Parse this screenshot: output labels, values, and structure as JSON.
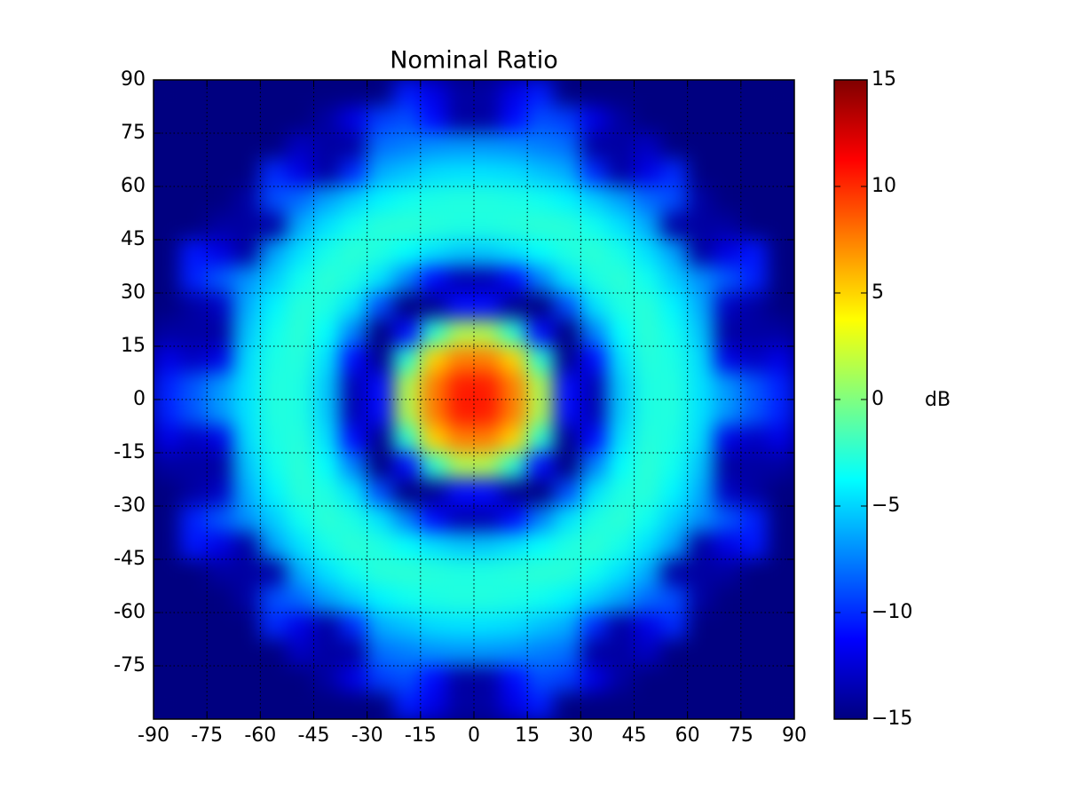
{
  "chart_data": {
    "type": "heatmap",
    "title": "Nominal Ratio",
    "colormap": "jet",
    "clim": [
      -15,
      15
    ],
    "colorbar_label": "dB",
    "colorbar_ticks": [
      {
        "value": 15,
        "label": "15"
      },
      {
        "value": 10,
        "label": "10"
      },
      {
        "value": 5,
        "label": "5"
      },
      {
        "value": 0,
        "label": "0"
      },
      {
        "value": -5,
        "label": "−5"
      },
      {
        "value": -10,
        "label": "−10"
      },
      {
        "value": -15,
        "label": "−15"
      }
    ],
    "xlim": [
      -90,
      90
    ],
    "ylim": [
      -90,
      90
    ],
    "xticks": [
      -90,
      -75,
      -60,
      -45,
      -30,
      -15,
      0,
      15,
      30,
      45,
      60,
      75,
      90
    ],
    "yticks": [
      90,
      75,
      60,
      45,
      30,
      15,
      0,
      -15,
      -30,
      -45,
      -60,
      -75
    ],
    "grid": true,
    "x": [
      -86.25,
      -78.75,
      -71.25,
      -63.75,
      -56.25,
      -48.75,
      -41.25,
      -33.75,
      -26.25,
      -18.75,
      -11.25,
      -3.75,
      3.75,
      11.25,
      18.75,
      26.25,
      33.75,
      41.25,
      48.75,
      56.25,
      63.75,
      71.25,
      78.75,
      86.25
    ],
    "y": [
      86.25,
      78.75,
      71.25,
      63.75,
      56.25,
      48.75,
      41.25,
      33.75,
      26.25,
      18.75,
      11.25,
      3.75,
      -3.75,
      -11.25,
      -18.75,
      -26.25,
      -33.75,
      -41.25,
      -48.75,
      -56.25,
      -63.75,
      -71.25,
      -78.75,
      -86.25
    ],
    "values": [
      [
        -15,
        -15,
        -15,
        -15,
        -15,
        -15,
        -15,
        -15,
        -15,
        -10.5,
        -12,
        -14,
        -14,
        -12,
        -10.5,
        -15,
        -15,
        -15,
        -15,
        -15,
        -15,
        -15,
        -15,
        -15
      ],
      [
        -15,
        -15,
        -15,
        -15,
        -15,
        -15,
        -14,
        -12,
        -9.5,
        -9,
        -11,
        -14,
        -14,
        -11,
        -9,
        -9.5,
        -12,
        -14,
        -15,
        -15,
        -15,
        -15,
        -15,
        -15
      ],
      [
        -15,
        -15,
        -15,
        -15,
        -15,
        -13,
        -14,
        -14,
        -8,
        -7.5,
        -7,
        -6.8,
        -6.8,
        -7,
        -7.5,
        -8,
        -14,
        -14,
        -13,
        -15,
        -15,
        -15,
        -15,
        -15
      ],
      [
        -15,
        -15,
        -15,
        -15,
        -10,
        -12,
        -14,
        -10,
        -6.2,
        -5.5,
        -4.8,
        -4.6,
        -4.6,
        -4.8,
        -5.5,
        -6.2,
        -10,
        -14,
        -12,
        -10,
        -15,
        -15,
        -15,
        -15
      ],
      [
        -15,
        -15,
        -15,
        -14,
        -9,
        -8.1,
        -6.5,
        -5.2,
        -4,
        -3.3,
        -3,
        -2.8,
        -2.8,
        -3,
        -3.3,
        -4,
        -5.2,
        -6.5,
        -8.1,
        -9,
        -14,
        -15,
        -15,
        -15
      ],
      [
        -15,
        -15,
        -14,
        -14,
        -14,
        -6.2,
        -4.6,
        -3.3,
        -2.6,
        -2.5,
        -2.7,
        -2.9,
        -2.9,
        -2.7,
        -2.5,
        -2.6,
        -3.3,
        -4.6,
        -6.2,
        -14,
        -14,
        -14,
        -15,
        -15
      ],
      [
        -15,
        -10.6,
        -12,
        -14,
        -6.5,
        -4.6,
        -3.1,
        -2.5,
        -2.9,
        -3.7,
        -4.6,
        -5.3,
        -5.3,
        -4.6,
        -3.7,
        -2.9,
        -2.5,
        -3.1,
        -4.6,
        -6.5,
        -14,
        -12,
        -10.6,
        -15
      ],
      [
        -15,
        -10.3,
        -8.7,
        -7,
        -5.2,
        -3.3,
        -2.5,
        -3,
        -4.6,
        -7.5,
        -11,
        -13.5,
        -13.5,
        -11,
        -7.5,
        -4.6,
        -3,
        -2.5,
        -3.3,
        -5.2,
        -7,
        -8.7,
        -10.3,
        -15
      ],
      [
        -15,
        -14,
        -13,
        -6.2,
        -4,
        -2.6,
        -2.9,
        -4.6,
        -9,
        -15,
        -14.5,
        -11,
        -11,
        -14.5,
        -15,
        -9,
        -4.6,
        -2.9,
        -2.6,
        -4,
        -6.2,
        -13,
        -14,
        -15
      ],
      [
        -14,
        -14,
        -14,
        -5.5,
        -3.3,
        -2.5,
        -3.7,
        -7.5,
        -15,
        -11,
        -2.5,
        1.4,
        1.4,
        -2.5,
        -11,
        -15,
        -7.5,
        -3.7,
        -2.5,
        -3.3,
        -5.5,
        -14,
        -14,
        -14
      ],
      [
        -12,
        -13,
        -12,
        -4.8,
        -3,
        -2.7,
        -4.6,
        -11,
        -14.5,
        -2.5,
        5,
        7.5,
        7.5,
        5,
        -2.5,
        -14.5,
        -11,
        -4.6,
        -2.7,
        -3,
        -4.8,
        -12,
        -13,
        -12
      ],
      [
        -10.3,
        -8.7,
        -6.8,
        -4.6,
        -2.8,
        -2.9,
        -5.3,
        -13.5,
        -11,
        1.4,
        7.5,
        10.5,
        10.5,
        7.5,
        1.4,
        -11,
        -13.5,
        -5.3,
        -2.9,
        -2.8,
        -4.6,
        -6.8,
        -8.7,
        -10.3
      ],
      [
        -10.3,
        -8.7,
        -6.8,
        -4.6,
        -2.8,
        -2.9,
        -5.3,
        -13.5,
        -11,
        1.4,
        7.5,
        10.5,
        10.5,
        7.5,
        1.4,
        -11,
        -13.5,
        -5.3,
        -2.9,
        -2.8,
        -4.6,
        -6.8,
        -8.7,
        -10.3
      ],
      [
        -12,
        -13,
        -12,
        -4.8,
        -3,
        -2.7,
        -4.6,
        -11,
        -14.5,
        -2.5,
        5,
        7.5,
        7.5,
        5,
        -2.5,
        -14.5,
        -11,
        -4.6,
        -2.7,
        -3,
        -4.8,
        -12,
        -13,
        -12
      ],
      [
        -14,
        -14,
        -14,
        -5.5,
        -3.3,
        -2.5,
        -3.7,
        -7.5,
        -15,
        -11,
        -2.5,
        1.4,
        1.4,
        -2.5,
        -11,
        -15,
        -7.5,
        -3.7,
        -2.5,
        -3.3,
        -5.5,
        -14,
        -14,
        -14
      ],
      [
        -15,
        -14,
        -13,
        -6.2,
        -4,
        -2.6,
        -2.9,
        -4.6,
        -9,
        -15,
        -14.5,
        -11,
        -11,
        -14.5,
        -15,
        -9,
        -4.6,
        -2.9,
        -2.6,
        -4,
        -6.2,
        -13,
        -14,
        -15
      ],
      [
        -15,
        -10.3,
        -8.7,
        -7,
        -5.2,
        -3.3,
        -2.5,
        -3,
        -4.6,
        -7.5,
        -11,
        -13.5,
        -13.5,
        -11,
        -7.5,
        -4.6,
        -3,
        -2.5,
        -3.3,
        -5.2,
        -7,
        -8.7,
        -10.3,
        -15
      ],
      [
        -15,
        -10.6,
        -12,
        -14,
        -6.5,
        -4.6,
        -3.1,
        -2.5,
        -2.9,
        -3.7,
        -4.6,
        -5.3,
        -5.3,
        -4.6,
        -3.7,
        -2.9,
        -2.5,
        -3.1,
        -4.6,
        -6.5,
        -14,
        -12,
        -10.6,
        -15
      ],
      [
        -15,
        -15,
        -14,
        -14,
        -14,
        -6.2,
        -4.6,
        -3.3,
        -2.6,
        -2.5,
        -2.7,
        -2.9,
        -2.9,
        -2.7,
        -2.5,
        -2.6,
        -3.3,
        -4.6,
        -6.2,
        -14,
        -14,
        -14,
        -15,
        -15
      ],
      [
        -15,
        -15,
        -15,
        -14,
        -9,
        -8.1,
        -6.5,
        -5.2,
        -4,
        -3.3,
        -3,
        -2.8,
        -2.8,
        -3,
        -3.3,
        -4,
        -5.2,
        -6.5,
        -8.1,
        -9,
        -14,
        -15,
        -15,
        -15
      ],
      [
        -15,
        -15,
        -15,
        -15,
        -10,
        -12,
        -14,
        -10,
        -6.2,
        -5.5,
        -4.8,
        -4.6,
        -4.6,
        -4.8,
        -5.5,
        -6.2,
        -10,
        -14,
        -12,
        -10,
        -15,
        -15,
        -15,
        -15
      ],
      [
        -15,
        -15,
        -15,
        -15,
        -15,
        -13,
        -14,
        -14,
        -8,
        -7.5,
        -7,
        -6.8,
        -6.8,
        -7,
        -7.5,
        -8,
        -14,
        -14,
        -13,
        -15,
        -15,
        -15,
        -15,
        -15
      ],
      [
        -15,
        -15,
        -15,
        -15,
        -15,
        -15,
        -14,
        -12,
        -9.5,
        -9,
        -11,
        -14,
        -14,
        -11,
        -9,
        -9.5,
        -12,
        -14,
        -15,
        -15,
        -15,
        -15,
        -15,
        -15
      ],
      [
        -15,
        -15,
        -15,
        -15,
        -15,
        -15,
        -15,
        -15,
        -15,
        -10.5,
        -12,
        -14,
        -14,
        -12,
        -10.5,
        -15,
        -15,
        -15,
        -15,
        -15,
        -15,
        -15,
        -15,
        -15
      ]
    ]
  }
}
